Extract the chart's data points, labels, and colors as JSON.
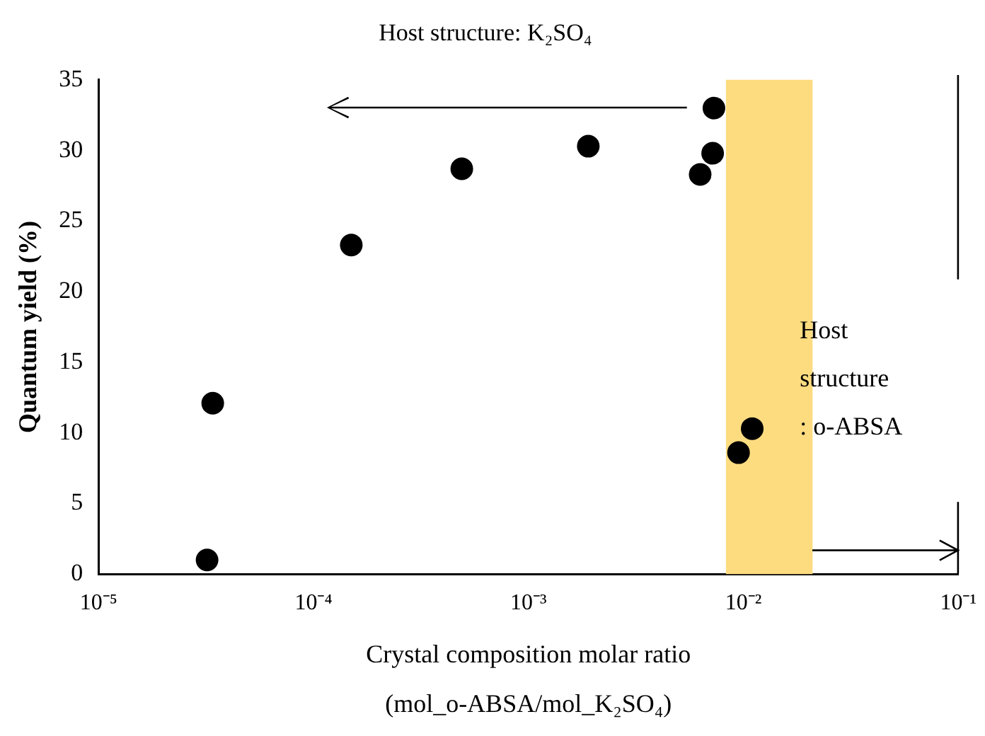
{
  "chart_data": {
    "type": "scatter",
    "title": "Host structure: K₂SO₄",
    "xlabel": "Crystal composition molar ratio\n(mol_o-ABSA/mol_K₂SO₄)",
    "ylabel": "Quantum yield (%)",
    "x": [
      3.2e-05,
      3.4e-05,
      0.00015,
      0.00049,
      0.0019,
      0.0073,
      0.0072,
      0.0063,
      0.011,
      0.0095
    ],
    "series": [
      {
        "color": "#000000",
        "values": [
          1.0,
          12.1,
          23.3,
          28.7,
          30.3,
          33.0,
          29.8,
          28.3,
          10.3,
          8.6
        ]
      }
    ],
    "log": "x",
    "xlim": [
      1e-05,
      0.1
    ],
    "xticks": [
      {
        "value": 1e-05,
        "label": "10⁻⁵"
      },
      {
        "value": 0.0001,
        "label": "10⁻⁴"
      },
      {
        "value": 0.001,
        "label": "10⁻³"
      },
      {
        "value": 0.01,
        "label": "10⁻²"
      },
      {
        "value": 0.1,
        "label": "10⁻¹"
      }
    ],
    "ylim": [
      0,
      35
    ],
    "yticks": [
      0,
      5,
      10,
      15,
      20,
      25,
      30,
      35
    ],
    "bands": [
      {
        "axis": "x",
        "from": 0.0083,
        "to": 0.021,
        "color": "#fddc80"
      }
    ],
    "annotations": [
      "Host\nstructure\n: o-ABSA"
    ],
    "grid": false,
    "legend": false,
    "marker": "circle"
  }
}
